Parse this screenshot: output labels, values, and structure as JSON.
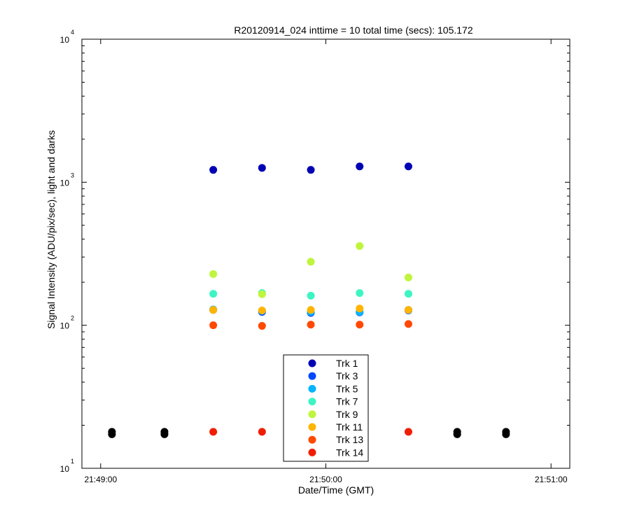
{
  "chart_data": {
    "type": "scatter",
    "title": "R20120914_024 inttime = 10 total time (secs): 105.172",
    "xlabel": "Date/Time (GMT)",
    "ylabel": "Signal Intensity (ADU/pix/sec), light and darks",
    "x_scale": "time",
    "y_scale": "log",
    "xlim": [
      "21:48:55",
      "21:51:05"
    ],
    "ylim": [
      10,
      10000
    ],
    "x_ticks": [
      "21:49:00",
      "21:50:00",
      "21:51:00"
    ],
    "y_ticks": [
      {
        "base": "10",
        "exp": "1",
        "value": 10
      },
      {
        "base": "10",
        "exp": "2",
        "value": 100
      },
      {
        "base": "10",
        "exp": "3",
        "value": 1000
      },
      {
        "base": "10",
        "exp": "4",
        "value": 10000
      }
    ],
    "grid": false,
    "legend_position": "bottom-center",
    "series": [
      {
        "name": "Trk 1",
        "color": "#0000b4",
        "x": [
          "21:49:30",
          "21:49:43",
          "21:49:56",
          "21:50:09",
          "21:50:22"
        ],
        "y": [
          1220,
          1260,
          1220,
          1290,
          1290
        ]
      },
      {
        "name": "Trk 3",
        "color": "#0048ff",
        "x": [
          "21:49:30",
          "21:49:43",
          "21:49:56",
          "21:50:09",
          "21:50:22"
        ],
        "y": [
          128,
          124,
          122,
          123,
          127
        ]
      },
      {
        "name": "Trk 5",
        "color": "#00b4ff",
        "x": [
          "21:49:30",
          "21:49:43",
          "21:49:56",
          "21:50:09",
          "21:50:22"
        ],
        "y": [
          129,
          126,
          124,
          124,
          128
        ]
      },
      {
        "name": "Trk 7",
        "color": "#3cf5c3",
        "x": [
          "21:49:30",
          "21:49:43",
          "21:49:56",
          "21:50:09",
          "21:50:22"
        ],
        "y": [
          166,
          168,
          161,
          168,
          166
        ]
      },
      {
        "name": "Trk 9",
        "color": "#bff53c",
        "x": [
          "21:49:30",
          "21:49:43",
          "21:49:56",
          "21:50:09",
          "21:50:22"
        ],
        "y": [
          228,
          165,
          278,
          358,
          216
        ]
      },
      {
        "name": "Trk 11",
        "color": "#ffb400",
        "x": [
          "21:49:30",
          "21:49:43",
          "21:49:56",
          "21:50:09",
          "21:50:22"
        ],
        "y": [
          128,
          127,
          128,
          131,
          128
        ]
      },
      {
        "name": "Trk 13",
        "color": "#ff4800",
        "x": [
          "21:49:30",
          "21:49:43",
          "21:49:56",
          "21:50:09",
          "21:50:22"
        ],
        "y": [
          100,
          99,
          101,
          101,
          102
        ]
      },
      {
        "name": "Trk 14",
        "color": "#f01e00",
        "x": [
          "21:49:30",
          "21:49:43",
          "21:50:22"
        ],
        "y": [
          18,
          18,
          18
        ]
      },
      {
        "name": "",
        "color": "#000000",
        "x": [
          "21:49:03",
          "21:49:03",
          "21:49:17",
          "21:49:17",
          "21:50:35",
          "21:50:35",
          "21:50:48",
          "21:50:48"
        ],
        "y": [
          18,
          17.3,
          18,
          17.3,
          18,
          17.3,
          18,
          17.3
        ]
      }
    ]
  }
}
